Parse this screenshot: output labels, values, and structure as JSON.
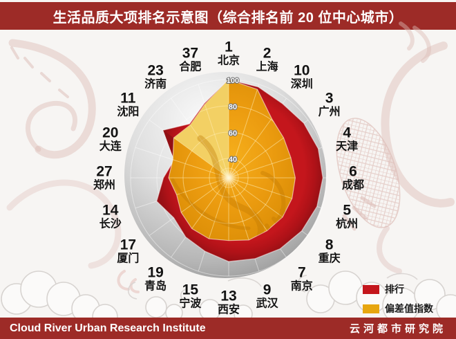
{
  "header": {
    "title": "生活品质大项排名示意图（综合排名前 20 位中心城市）"
  },
  "footer": {
    "left": "Cloud River Urban Research Institute",
    "right": "云河都市研究院"
  },
  "legend": {
    "items": [
      {
        "label": "排行",
        "color": "#c4161c"
      },
      {
        "label": "偏差值指数",
        "color": "#e7a60f"
      }
    ]
  },
  "colors": {
    "banner_red": "#9d2b27",
    "series_rank_red": "#c4161c",
    "series_index_gold": "#ec9c10",
    "index_highlight_facet": "#f3d268",
    "sphere_gray": "#c9c9c9"
  },
  "chart_data": {
    "type": "radar",
    "title": "生活品质大项排名示意图（综合排名前 20 位中心城市）",
    "axes_clockwise_from_top": true,
    "scale": {
      "min": 0,
      "max": 100
    },
    "ring_values": [
      100,
      80,
      60,
      40
    ],
    "ring_labels": [
      "100",
      "80",
      "60",
      "40"
    ],
    "grid_rings": [
      20,
      40,
      60,
      80,
      100
    ],
    "categories": [
      {
        "city": "北京",
        "rank": "1"
      },
      {
        "city": "上海",
        "rank": "2"
      },
      {
        "city": "深圳",
        "rank": "10"
      },
      {
        "city": "广州",
        "rank": "3"
      },
      {
        "city": "天津",
        "rank": "4"
      },
      {
        "city": "成都",
        "rank": "6"
      },
      {
        "city": "杭州",
        "rank": "5"
      },
      {
        "city": "重庆",
        "rank": "8"
      },
      {
        "city": "南京",
        "rank": "7"
      },
      {
        "city": "武汉",
        "rank": "9"
      },
      {
        "city": "西安",
        "rank": "13"
      },
      {
        "city": "宁波",
        "rank": "15"
      },
      {
        "city": "青岛",
        "rank": "19"
      },
      {
        "city": "厦门",
        "rank": "17"
      },
      {
        "city": "长沙",
        "rank": "14"
      },
      {
        "city": "郑州",
        "rank": "27"
      },
      {
        "city": "大连",
        "rank": "20"
      },
      {
        "city": "沈阳",
        "rank": "11"
      },
      {
        "city": "济南",
        "rank": "23"
      },
      {
        "city": "合肥",
        "rank": "37"
      }
    ],
    "series": [
      {
        "name": "排行",
        "color": "#c4161c",
        "values": [
          100,
          98,
          95,
          96,
          97,
          97,
          96,
          94,
          92,
          90,
          89,
          84,
          81,
          77,
          83,
          75,
          69,
          87,
          76,
          85
        ]
      },
      {
        "name": "偏差值指数",
        "color": "#ec9c10",
        "values": [
          100,
          96,
          81,
          77,
          75,
          76,
          76,
          76,
          75,
          75,
          73,
          74,
          73,
          70,
          67,
          71,
          70,
          77,
          75,
          84
        ]
      }
    ],
    "legend_position": "bottom-right"
  }
}
